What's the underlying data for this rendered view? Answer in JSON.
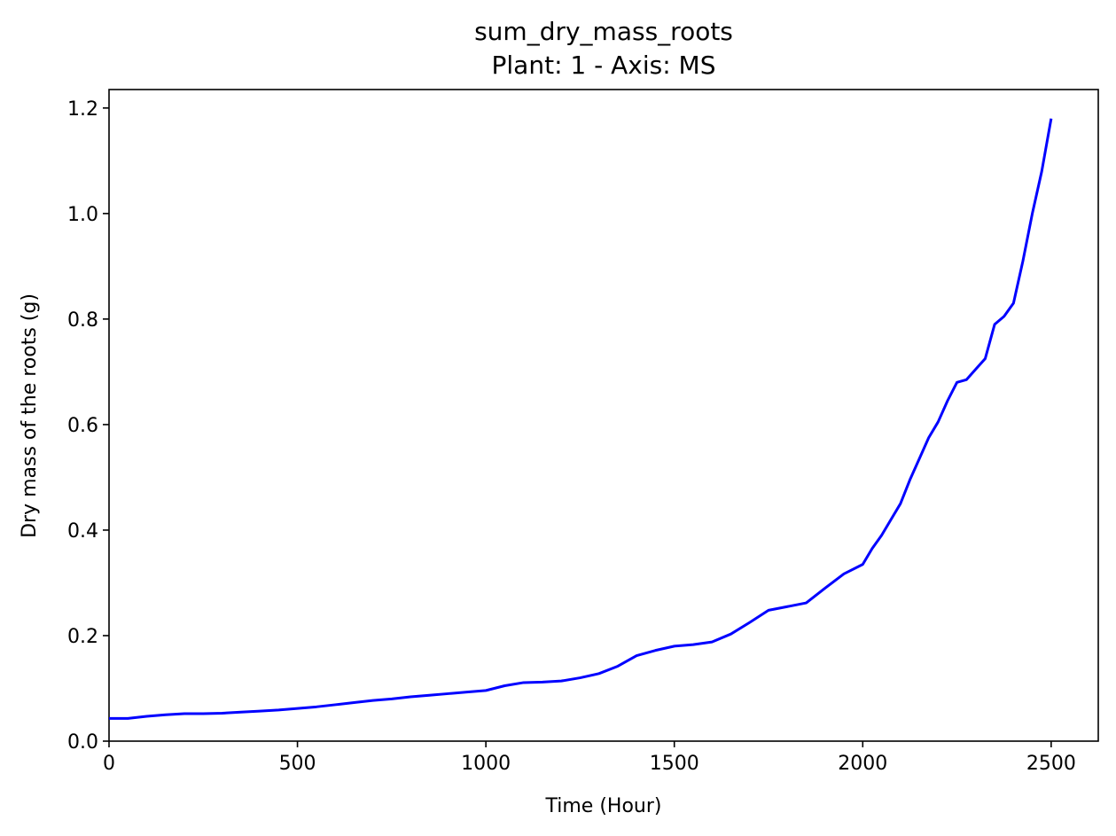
{
  "chart_data": {
    "type": "line",
    "title": "sum_dry_mass_roots",
    "subtitle": "Plant: 1 - Axis: MS",
    "xlabel": "Time (Hour)",
    "ylabel": "Dry mass of the roots (g)",
    "xlim": [
      0,
      2625
    ],
    "ylim": [
      0,
      1.235
    ],
    "xticks": [
      0,
      500,
      1000,
      1500,
      2000,
      2500
    ],
    "xtick_labels": [
      "0",
      "500",
      "1000",
      "1500",
      "2000",
      "2500"
    ],
    "yticks": [
      0.0,
      0.2,
      0.4,
      0.6,
      0.8,
      1.0,
      1.2
    ],
    "ytick_labels": [
      "0.0",
      "0.2",
      "0.4",
      "0.6",
      "0.8",
      "1.0",
      "1.2"
    ],
    "grid": false,
    "series": [
      {
        "color": "#0000ff",
        "x": [
          0,
          50,
          100,
          150,
          200,
          250,
          300,
          350,
          400,
          450,
          500,
          550,
          600,
          650,
          700,
          750,
          800,
          850,
          900,
          950,
          1000,
          1050,
          1100,
          1150,
          1200,
          1250,
          1300,
          1350,
          1400,
          1450,
          1500,
          1550,
          1600,
          1650,
          1700,
          1750,
          1800,
          1850,
          1900,
          1950,
          2000,
          2025,
          2050,
          2075,
          2100,
          2125,
          2150,
          2175,
          2200,
          2225,
          2250,
          2275,
          2300,
          2325,
          2350,
          2375,
          2400,
          2425,
          2450,
          2475,
          2500
        ],
        "y": [
          0.043,
          0.043,
          0.047,
          0.05,
          0.052,
          0.052,
          0.053,
          0.055,
          0.057,
          0.059,
          0.062,
          0.065,
          0.069,
          0.073,
          0.077,
          0.08,
          0.084,
          0.087,
          0.09,
          0.093,
          0.096,
          0.105,
          0.111,
          0.112,
          0.114,
          0.12,
          0.128,
          0.142,
          0.162,
          0.172,
          0.18,
          0.183,
          0.188,
          0.203,
          0.225,
          0.248,
          0.255,
          0.262,
          0.29,
          0.317,
          0.335,
          0.365,
          0.39,
          0.42,
          0.45,
          0.495,
          0.535,
          0.575,
          0.605,
          0.645,
          0.68,
          0.685,
          0.705,
          0.725,
          0.79,
          0.805,
          0.83,
          0.91,
          1.0,
          1.08,
          1.18
        ]
      }
    ]
  }
}
